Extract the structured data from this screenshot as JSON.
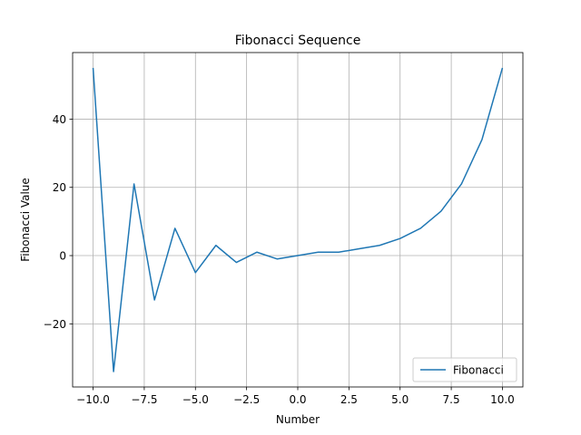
{
  "chart_data": {
    "type": "line",
    "title": "Fibonacci Sequence",
    "xlabel": "Number",
    "ylabel": "Fibonacci Value",
    "xlim": [
      -11,
      11
    ],
    "ylim": [
      -38.5,
      59.5
    ],
    "xticks": [
      -10,
      -7.5,
      -5,
      -2.5,
      0,
      2.5,
      5,
      7.5,
      10
    ],
    "xtick_labels": [
      "−10.0",
      "−7.5",
      "−5.0",
      "−2.5",
      "0.0",
      "2.5",
      "5.0",
      "7.5",
      "10.0"
    ],
    "yticks": [
      -20,
      0,
      20,
      40
    ],
    "ytick_labels": [
      "−20",
      "0",
      "20",
      "40"
    ],
    "grid": true,
    "legend_position": "lower-right",
    "series": [
      {
        "name": "Fibonacci",
        "color": "#1f77b4",
        "x": [
          -10,
          -9,
          -8,
          -7,
          -6,
          -5,
          -4,
          -3,
          -2,
          -1,
          0,
          1,
          2,
          3,
          4,
          5,
          6,
          7,
          8,
          9,
          10
        ],
        "y": [
          55,
          -34,
          21,
          -13,
          8,
          -5,
          3,
          -2,
          1,
          -1,
          0,
          1,
          1,
          2,
          3,
          5,
          8,
          13,
          21,
          34,
          55
        ]
      }
    ]
  }
}
